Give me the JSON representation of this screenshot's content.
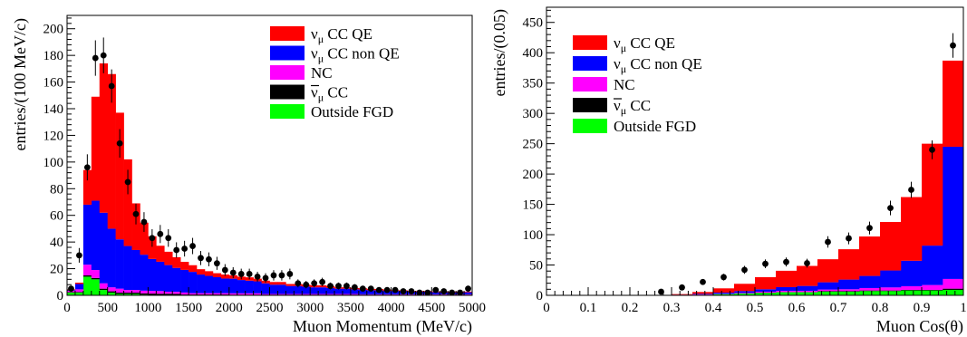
{
  "chart_data": [
    {
      "type": "stacked-histogram",
      "xlabel": "Muon Momentum (MeV/c)",
      "ylabel": "entries/(100 MeV/c)",
      "xlim": [
        0,
        5000
      ],
      "ylim": [
        0,
        210
      ],
      "bin_width": 100,
      "x_ticks": [
        0,
        500,
        1000,
        1500,
        2000,
        2500,
        3000,
        3500,
        4000,
        4500,
        5000
      ],
      "y_ticks": [
        0,
        20,
        40,
        60,
        80,
        100,
        120,
        140,
        160,
        180,
        200
      ],
      "legend_position": "top-right",
      "legend": [
        {
          "key": "qe",
          "label": "ν",
          "sub": "μ",
          "suffix": " CC QE",
          "bar": false,
          "color": "#ff0000"
        },
        {
          "key": "nonqe",
          "label": "ν",
          "sub": "μ",
          "suffix": " CC non QE",
          "bar": false,
          "color": "#0000ff"
        },
        {
          "key": "nc",
          "label": "NC",
          "sub": "",
          "suffix": "",
          "bar": false,
          "color": "#ff00ff"
        },
        {
          "key": "anti",
          "label": "ν",
          "sub": "μ",
          "suffix": " CC",
          "bar": true,
          "color": "#000000"
        },
        {
          "key": "out",
          "label": "Outside FGD",
          "sub": "",
          "suffix": "",
          "bar": false,
          "color": "#00ff00"
        }
      ],
      "series": [
        {
          "key": "out",
          "values": [
            2,
            2,
            14,
            12,
            4,
            2,
            1,
            1,
            1,
            0.5,
            0.3,
            0.2,
            0.2,
            0.1,
            0.1,
            0.1,
            0.1,
            0.1,
            0.1,
            0.1,
            0,
            0,
            0,
            0,
            0,
            0,
            0,
            0,
            0,
            0,
            0,
            0,
            0,
            0,
            0,
            0,
            0,
            0,
            0,
            0,
            0,
            0,
            0,
            0,
            0,
            0,
            0,
            0,
            0,
            0
          ]
        },
        {
          "key": "anti",
          "values": [
            0.5,
            0.5,
            1,
            1,
            1,
            1,
            1,
            1,
            1,
            1,
            1,
            1,
            1,
            1,
            0.5,
            0.5,
            0.5,
            0.5,
            0.5,
            0.5,
            0.5,
            0.5,
            0.5,
            0.5,
            0.5,
            0.5,
            0.5,
            0.5,
            0.5,
            0.5,
            0.5,
            0.5,
            0.5,
            0.5,
            0.5,
            0.5,
            0.5,
            0.5,
            0.5,
            0.5,
            0.5,
            0.5,
            0.5,
            0.5,
            0.5,
            0.5,
            0.5,
            0.5,
            0.5,
            0.5
          ]
        },
        {
          "key": "nc",
          "values": [
            1,
            2,
            8,
            6,
            4,
            3,
            3,
            2,
            2,
            2,
            2,
            2,
            1.5,
            1.5,
            1.5,
            1,
            1,
            1,
            1,
            1,
            1,
            1,
            1,
            1,
            0.5,
            0.5,
            0.5,
            0.5,
            0.5,
            0.5,
            0.5,
            0.5,
            0.5,
            0.5,
            0.5,
            0.5,
            0.3,
            0.3,
            0.3,
            0.3,
            0.3,
            0.3,
            0.3,
            0.3,
            0.3,
            0.3,
            0.3,
            0.3,
            0.3,
            0.3
          ]
        },
        {
          "key": "nonqe",
          "values": [
            0.5,
            4,
            45,
            52,
            53,
            44,
            37,
            33,
            30,
            27,
            24,
            22,
            20,
            18,
            17,
            16,
            14,
            13,
            12,
            11,
            11,
            10,
            9.5,
            9,
            8,
            7,
            7,
            6,
            6,
            5.5,
            5,
            5,
            4.5,
            4,
            4,
            3.5,
            3.5,
            3,
            3,
            2.5,
            2.5,
            2.5,
            2,
            2,
            2,
            1.5,
            1.5,
            1.5,
            1.5,
            1.5
          ]
        },
        {
          "key": "qe",
          "values": [
            0.5,
            1,
            26,
            78,
            112,
            116,
            95,
            65,
            35,
            24,
            17,
            12,
            10,
            8,
            6,
            5,
            4,
            3.5,
            3,
            3,
            2.5,
            2.5,
            2.5,
            2,
            2,
            2,
            2,
            1.5,
            1.5,
            1.5,
            1.5,
            1.5,
            1.5,
            1,
            1,
            1,
            1,
            1,
            1,
            1,
            0.5,
            0.5,
            0.5,
            0.5,
            0.5,
            0.5,
            0.5,
            0.5,
            0.5,
            0.5
          ]
        }
      ],
      "data_points": {
        "x": [
          50,
          150,
          250,
          350,
          450,
          550,
          650,
          750,
          850,
          950,
          1050,
          1150,
          1250,
          1350,
          1450,
          1550,
          1650,
          1750,
          1850,
          1950,
          2050,
          2150,
          2250,
          2350,
          2450,
          2550,
          2650,
          2750,
          2850,
          2950,
          3050,
          3150,
          3250,
          3350,
          3450,
          3550,
          3650,
          3750,
          3850,
          3950,
          4050,
          4150,
          4250,
          4350,
          4450,
          4550,
          4650,
          4750,
          4850,
          4950
        ],
        "y": [
          5,
          30,
          96,
          178,
          180,
          157,
          114,
          85,
          61,
          55,
          43,
          46,
          43,
          34,
          35,
          37,
          28,
          27,
          24,
          19,
          17,
          16,
          16,
          14,
          13,
          15,
          15,
          16,
          9,
          8,
          9,
          10,
          7,
          7,
          7,
          6,
          5,
          5,
          4,
          4,
          4,
          3,
          3,
          2,
          2,
          4,
          3,
          2,
          2,
          5
        ],
        "err": [
          2.2,
          5.5,
          9.8,
          13.3,
          13.4,
          12.5,
          10.7,
          9.2,
          7.8,
          7.4,
          6.6,
          6.8,
          6.6,
          5.8,
          5.9,
          6.1,
          5.3,
          5.2,
          4.9,
          4.4,
          4.1,
          4,
          4,
          3.7,
          3.6,
          3.9,
          3.9,
          4,
          3,
          2.8,
          3,
          3.2,
          2.6,
          2.6,
          2.6,
          2.4,
          2.2,
          2.2,
          2,
          2,
          2,
          1.7,
          1.7,
          1.4,
          1.4,
          2,
          1.7,
          1.4,
          1.4,
          2.2
        ]
      }
    },
    {
      "type": "stacked-histogram",
      "xlabel": "Muon Cos(θ)",
      "ylabel": "entries/(0.05)",
      "xlim": [
        0,
        1
      ],
      "ylim": [
        0,
        475
      ],
      "bin_width": 0.05,
      "x_ticks": [
        "0",
        "0.1",
        "0.2",
        "0.3",
        "0.4",
        "0.5",
        "0.6",
        "0.7",
        "0.8",
        "0.9",
        "1"
      ],
      "y_ticks": [
        0,
        50,
        100,
        150,
        200,
        250,
        300,
        350,
        400,
        450
      ],
      "legend_position": "top-left",
      "legend": [
        {
          "key": "qe",
          "label": "ν",
          "sub": "μ",
          "suffix": " CC QE",
          "bar": false,
          "color": "#ff0000"
        },
        {
          "key": "nonqe",
          "label": "ν",
          "sub": "μ",
          "suffix": " CC non QE",
          "bar": false,
          "color": "#0000ff"
        },
        {
          "key": "nc",
          "label": "NC",
          "sub": "",
          "suffix": "",
          "bar": false,
          "color": "#ff00ff"
        },
        {
          "key": "anti",
          "label": "ν",
          "sub": "μ",
          "suffix": " CC",
          "bar": true,
          "color": "#000000"
        },
        {
          "key": "out",
          "label": "Outside FGD",
          "sub": "",
          "suffix": "",
          "bar": false,
          "color": "#00ff00"
        }
      ],
      "series": [
        {
          "key": "out",
          "values": [
            0,
            0,
            0,
            0,
            0,
            0,
            0.5,
            1,
            2,
            3,
            4,
            5,
            5,
            6,
            6,
            7,
            7,
            8,
            8,
            9
          ]
        },
        {
          "key": "anti",
          "values": [
            0,
            0,
            0,
            0,
            0,
            0,
            0,
            0,
            0,
            0,
            0.5,
            0.5,
            0.5,
            1,
            1,
            1,
            1,
            1,
            1,
            2
          ]
        },
        {
          "key": "nc",
          "values": [
            0,
            0,
            0,
            0,
            0,
            0,
            0,
            0.5,
            0.5,
            1,
            1.5,
            2,
            2,
            2.5,
            3,
            4,
            5,
            6,
            8,
            16
          ]
        },
        {
          "key": "nonqe",
          "values": [
            0,
            0,
            0,
            0,
            0,
            0,
            0.5,
            1,
            2,
            3,
            4,
            6,
            8,
            12,
            16,
            20,
            28,
            42,
            65,
            218
          ]
        },
        {
          "key": "qe",
          "values": [
            0,
            0,
            0,
            0,
            0,
            0,
            1,
            3,
            7,
            12,
            20,
            27,
            33,
            38,
            50,
            65,
            80,
            105,
            168,
            142
          ]
        }
      ],
      "data_points": {
        "x": [
          0.275,
          0.325,
          0.375,
          0.425,
          0.475,
          0.525,
          0.575,
          0.625,
          0.675,
          0.725,
          0.775,
          0.825,
          0.875,
          0.925,
          0.975
        ],
        "y": [
          6,
          13,
          22,
          30,
          42,
          52,
          55,
          53,
          88,
          94,
          111,
          144,
          174,
          240,
          412
        ],
        "err": [
          2.4,
          3.6,
          4.7,
          5.5,
          6.5,
          7.2,
          7.4,
          7.3,
          9.4,
          9.7,
          10.5,
          12,
          13.2,
          15.5,
          20.3
        ]
      }
    }
  ]
}
